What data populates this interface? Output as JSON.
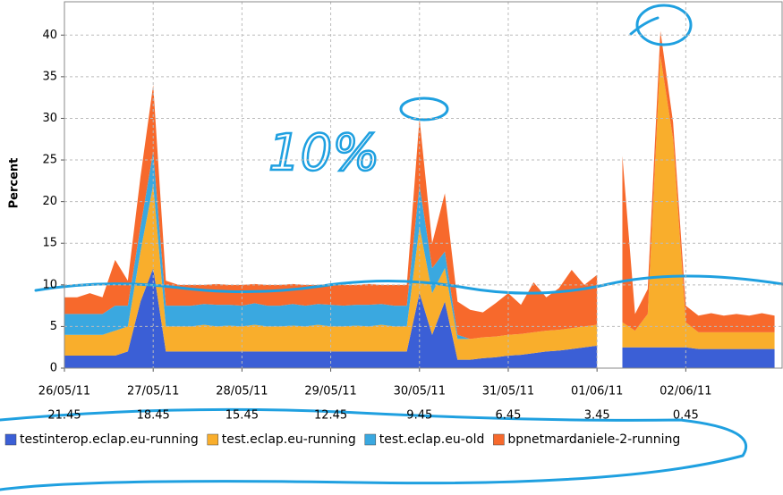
{
  "chart_data": {
    "type": "stacked-area",
    "y_label": "Percent",
    "annotation": "10%",
    "xlim": [
      0,
      170
    ],
    "ylim": [
      0,
      44
    ],
    "yticks": [
      0,
      5,
      10,
      15,
      20,
      25,
      30,
      35,
      40
    ],
    "xticks": [
      {
        "value": 0,
        "label": "26/05/11",
        "sublabel": "21.45"
      },
      {
        "value": 21,
        "label": "27/05/11",
        "sublabel": "18.45"
      },
      {
        "value": 42,
        "label": "28/05/11",
        "sublabel": "15.45"
      },
      {
        "value": 63,
        "label": "29/05/11",
        "sublabel": "12.45"
      },
      {
        "value": 84,
        "label": "30/05/11",
        "sublabel": "9.45"
      },
      {
        "value": 105,
        "label": "31/05/11",
        "sublabel": "6.45"
      },
      {
        "value": 126,
        "label": "01/06/11",
        "sublabel": "3.45"
      },
      {
        "value": 147,
        "label": "02/06/11",
        "sublabel": "0.45"
      }
    ],
    "grid": true,
    "legend": "bottom",
    "x": [
      0,
      3,
      6,
      9,
      12,
      15,
      18,
      21,
      24,
      27,
      30,
      33,
      36,
      39,
      42,
      45,
      48,
      51,
      54,
      57,
      60,
      63,
      66,
      69,
      72,
      75,
      78,
      81,
      84,
      87,
      90,
      93,
      96,
      99,
      102,
      105,
      108,
      111,
      114,
      117,
      120,
      123,
      126,
      129,
      132,
      135,
      138,
      141,
      144,
      147,
      150,
      153,
      156,
      159,
      162,
      165,
      168
    ],
    "series": [
      {
        "name": "testinterop.eclap.eu-running",
        "color": "#3b5fd6",
        "values": [
          1.5,
          1.5,
          1.5,
          1.5,
          1.5,
          2,
          8,
          12,
          2,
          2,
          2,
          2,
          2,
          2,
          2,
          2,
          2,
          2,
          2,
          2,
          2,
          2,
          2,
          2,
          2,
          2,
          2,
          2,
          9,
          4,
          8,
          1,
          1,
          1.2,
          1.3,
          1.5,
          1.6,
          1.8,
          2,
          2.1,
          2.3,
          2.5,
          2.7,
          null,
          2.5,
          2.5,
          2.5,
          2.5,
          2.5,
          2.5,
          2.3,
          2.3,
          2.3,
          2.3,
          2.3,
          2.3,
          2.3
        ]
      },
      {
        "name": "test.eclap.eu-running",
        "color": "#f9ae2c",
        "values": [
          2.5,
          2.5,
          2.5,
          2.5,
          3,
          3,
          6,
          10,
          3,
          3,
          3,
          3.2,
          3,
          3.1,
          3,
          3.2,
          3,
          3,
          3.1,
          3,
          3.2,
          3,
          3,
          3.1,
          3,
          3.2,
          3,
          3,
          8,
          5,
          4,
          2.5,
          2.5,
          2.5,
          2.5,
          2.5,
          2.5,
          2.5,
          2.5,
          2.5,
          2.5,
          2.5,
          2.5,
          null,
          3,
          2,
          4,
          35,
          25,
          3,
          2,
          2,
          2,
          2,
          2,
          2,
          2
        ]
      },
      {
        "name": "test.eclap.eu-old",
        "color": "#3aa8e0",
        "values": [
          2.5,
          2.5,
          2.5,
          2.5,
          3,
          2.5,
          3,
          4,
          2.5,
          2.5,
          2.5,
          2.5,
          2.6,
          2.5,
          2.5,
          2.6,
          2.5,
          2.5,
          2.6,
          2.5,
          2.5,
          2.6,
          2.5,
          2.5,
          2.6,
          2.5,
          2.5,
          2.5,
          5,
          3,
          2,
          0.5,
          0,
          0,
          0,
          0,
          0,
          0,
          0,
          0,
          0,
          0,
          0,
          null,
          0,
          0,
          0,
          0,
          0,
          0,
          0,
          0,
          0,
          0,
          0,
          0,
          0
        ]
      },
      {
        "name": "bpnetmardaniele-2-running",
        "color": "#f7692c",
        "values": [
          2,
          2,
          2.5,
          2,
          5.5,
          3,
          6,
          8,
          3,
          2.5,
          2.5,
          2.3,
          2.5,
          2.4,
          2.5,
          2.3,
          2.5,
          2.5,
          2.4,
          2.5,
          2.3,
          2.5,
          2.5,
          2.4,
          2.5,
          2.3,
          2.5,
          2.5,
          8,
          3,
          7,
          4,
          3.5,
          3,
          4,
          5,
          3.5,
          6,
          4,
          5,
          7,
          5,
          6,
          null,
          20,
          2,
          3,
          3,
          2,
          2,
          2,
          2.3,
          2,
          2.2,
          2,
          2.3,
          2
        ]
      }
    ]
  }
}
